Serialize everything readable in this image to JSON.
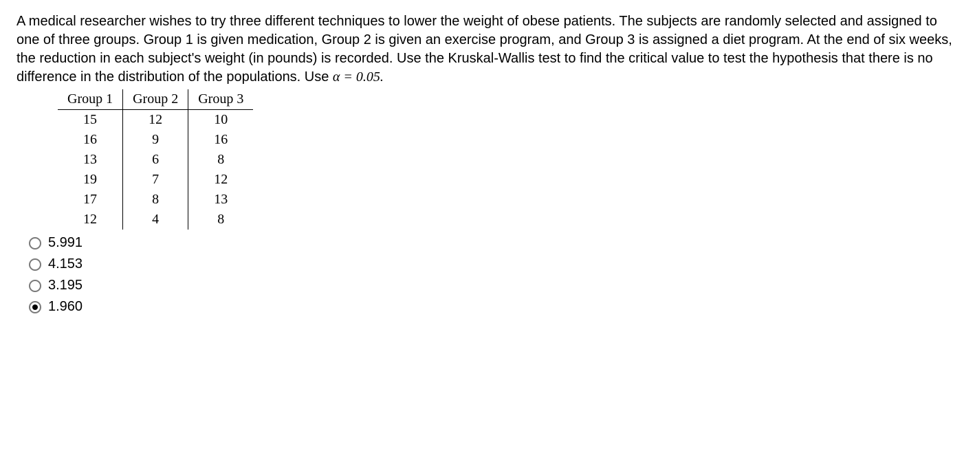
{
  "question": {
    "text_before_alpha": "A medical researcher wishes to try three different techniques to lower the weight of obese patients. The subjects are randomly selected and assigned to one of three groups. Group 1 is given medication, Group 2 is given an exercise program, and Group 3 is assigned a diet program. At the end of six weeks, the reduction in each subject's weight (in pounds) is recorded. Use the Kruskal-Wallis test to find the critical value to test the hypothesis that there is no difference in the distribution of the populations. Use ",
    "alpha_expr": "α = 0.05."
  },
  "table": {
    "columns": [
      "Group 1",
      "Group 2",
      "Group 3"
    ],
    "rows": [
      [
        "15",
        "12",
        "10"
      ],
      [
        "16",
        "9",
        "16"
      ],
      [
        "13",
        "6",
        "8"
      ],
      [
        "19",
        "7",
        "12"
      ],
      [
        "17",
        "8",
        "13"
      ],
      [
        "12",
        "4",
        "8"
      ]
    ],
    "header_font_family": "Book Antiqua, Palatino, Times New Roman, serif",
    "border_color": "#000000"
  },
  "options": [
    {
      "label": "5.991",
      "selected": false
    },
    {
      "label": "4.153",
      "selected": false
    },
    {
      "label": "3.195",
      "selected": false
    },
    {
      "label": "1.960",
      "selected": true
    }
  ],
  "styling": {
    "body_font_size": 20,
    "body_color": "#000000",
    "background_color": "#ffffff",
    "radio_border_color": "#7a7a7a",
    "radio_dot_color": "#000000"
  }
}
